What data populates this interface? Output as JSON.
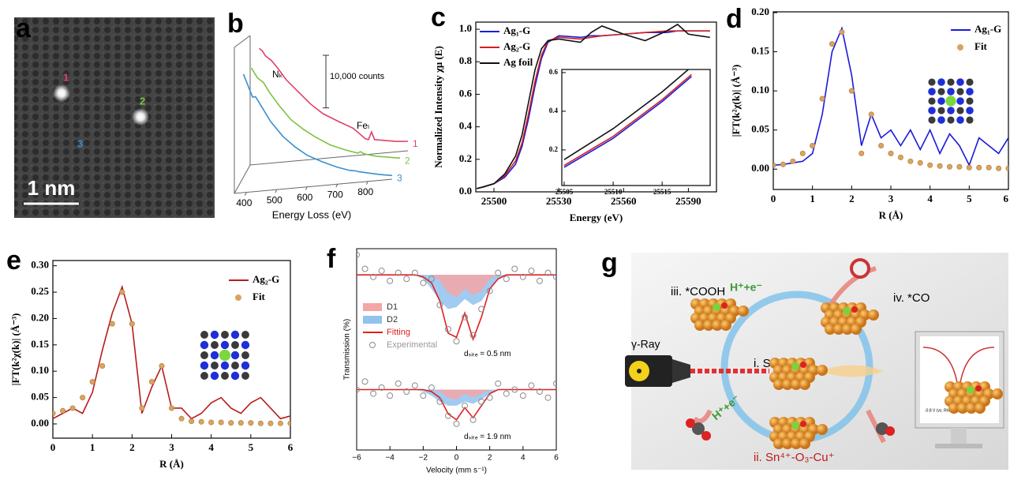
{
  "panel_labels": [
    "a",
    "b",
    "c",
    "d",
    "e",
    "f",
    "g"
  ],
  "image_a": {
    "spots": [
      "1",
      "2",
      "3"
    ],
    "scale_bar": "1 nm"
  },
  "scheme_g": {
    "step_iii": "iii. *COOH",
    "proton_1": "H⁺+e⁻",
    "step_iv": "iv. *CO",
    "source": "γ-Ray",
    "step_i": "i. Sn₁-CuO",
    "step_ii": "ii. Sn⁴⁺-O₃-Cu⁺",
    "proton_2": "H⁺+e⁻",
    "screen_potential": "-0.8 V (vs. RHE)",
    "screen_label": "ii. Sn⁴⁺-O₃-Cu⁺"
  },
  "chart_data": [
    {
      "type": "line3d",
      "xlabel": "Energy Loss (eV)",
      "x": [
        390,
        400,
        410,
        420,
        430,
        450,
        480,
        520,
        560,
        600,
        650,
        700,
        740,
        750,
        760,
        770,
        800,
        840,
        880
      ],
      "series": [
        {
          "name": "1",
          "color": "#e0406a",
          "values": [
            22000,
            21500,
            20500,
            20000,
            19500,
            18000,
            15500,
            13000,
            10500,
            8500,
            6800,
            5200,
            3000,
            2800,
            4200,
            2700,
            2400,
            2000,
            1800
          ]
        },
        {
          "name": "2",
          "color": "#7cc242",
          "values": [
            21000,
            20000,
            19000,
            18500,
            18000,
            16000,
            13500,
            10500,
            8500,
            6800,
            5000,
            3800,
            3000,
            3200,
            2800,
            2600,
            2100,
            1700,
            1300
          ]
        },
        {
          "name": "3",
          "color": "#3a8fd0",
          "values": [
            22500,
            21000,
            19500,
            18000,
            18000,
            16000,
            13000,
            10000,
            7800,
            6000,
            4500,
            3200,
            2400,
            2300,
            2200,
            2000,
            1600,
            1100,
            700
          ]
        }
      ],
      "xlim": [
        360,
        880
      ],
      "xticks": [
        400,
        500,
        600,
        700,
        800
      ],
      "ylim": [
        0,
        30000
      ],
      "scale_bar": {
        "value": 10000,
        "label": "10,000 counts"
      },
      "annotations": [
        "Nₖ",
        "Feₗ"
      ]
    },
    {
      "type": "line",
      "xlabel": "Energy (eV)",
      "ylabel": "Normalized Intensity χμ (E)",
      "x": [
        25492,
        25495,
        25500,
        25505,
        25510,
        25513,
        25516,
        25519,
        25522,
        25525,
        25530,
        25540,
        25545,
        25550,
        25560,
        25570,
        25580,
        25585,
        25590,
        25600
      ],
      "series": [
        {
          "name": "Ag₁-G",
          "color": "#1a1adb",
          "values": [
            0.02,
            0.03,
            0.05,
            0.09,
            0.17,
            0.28,
            0.45,
            0.65,
            0.82,
            0.92,
            0.96,
            0.95,
            0.96,
            0.96,
            0.97,
            0.98,
            0.98,
            0.99,
            0.99,
            0.99
          ]
        },
        {
          "name": "Ag₂-G",
          "color": "#d42020",
          "values": [
            0.02,
            0.03,
            0.05,
            0.1,
            0.19,
            0.3,
            0.48,
            0.68,
            0.84,
            0.93,
            0.95,
            0.94,
            0.95,
            0.96,
            0.97,
            0.98,
            0.99,
            0.99,
            0.99,
            0.99
          ]
        },
        {
          "name": "Ag foil",
          "color": "#111111",
          "values": [
            0.02,
            0.03,
            0.05,
            0.11,
            0.22,
            0.35,
            0.55,
            0.75,
            0.88,
            0.93,
            0.94,
            0.92,
            0.98,
            1.02,
            0.97,
            0.93,
            0.99,
            1.03,
            0.97,
            0.95
          ]
        }
      ],
      "xlim": [
        25491.6,
        25603
      ],
      "xticks": [
        25500,
        25530,
        25560,
        25590
      ],
      "ylim": [
        0,
        1.044
      ],
      "yticks": [
        {
          "value": 0,
          "label": "0.0"
        },
        {
          "value": 0.2,
          "label": "0.2"
        },
        {
          "value": 0.4,
          "label": "0.4"
        },
        {
          "value": 0.6,
          "label": "0.6"
        },
        {
          "value": 0.8,
          "label": "0.8"
        },
        {
          "value": 1,
          "label": "1.0"
        }
      ],
      "legend": "upper left"
    },
    {
      "type": "line",
      "x": [
        25505,
        25510,
        25515,
        25518
      ],
      "series": [
        {
          "color": "#1a1adb",
          "values": [
            0.11,
            0.26,
            0.45,
            0.58
          ]
        },
        {
          "color": "#d42020",
          "values": [
            0.12,
            0.27,
            0.46,
            0.59
          ]
        },
        {
          "color": "#111111",
          "values": [
            0.15,
            0.31,
            0.5,
            0.63
          ]
        }
      ],
      "xlim": [
        25504.76,
        25519.9
      ],
      "xticks": [
        25505,
        25510,
        25515
      ],
      "ylim": [
        0.016,
        0.616
      ],
      "yticks": [
        0.2,
        0.4,
        0.6
      ]
    },
    {
      "type": "line",
      "xlabel": "R (Å)",
      "ylabel": "|FT(k²χ(k)| (Å⁻³)",
      "x": [
        0,
        0.25,
        0.5,
        0.75,
        1,
        1.25,
        1.5,
        1.75,
        2,
        2.25,
        2.5,
        2.75,
        3,
        3.25,
        3.5,
        3.75,
        4,
        4.25,
        4.5,
        4.75,
        5,
        5.25,
        5.5,
        5.75,
        6
      ],
      "series": [
        {
          "name": "Ag₁-G",
          "color": "#1a1adb",
          "style": "line",
          "values": [
            0.005,
            0.006,
            0.008,
            0.01,
            0.02,
            0.07,
            0.15,
            0.18,
            0.12,
            0.03,
            0.07,
            0.04,
            0.05,
            0.03,
            0.05,
            0.025,
            0.05,
            0.02,
            0.045,
            0.03,
            0.005,
            0.04,
            0.03,
            0.02,
            0.04
          ]
        },
        {
          "name": "Fit",
          "color": "#d9a45f",
          "style": "markers",
          "values": [
            0.005,
            0.006,
            0.01,
            0.02,
            0.03,
            0.09,
            0.16,
            0.175,
            0.1,
            0.02,
            0.07,
            0.03,
            0.02,
            0.015,
            0.01,
            0.008,
            0.005,
            0.004,
            0.003,
            0.003,
            0.002,
            0.002,
            0.002,
            0.001,
            0.001
          ]
        }
      ],
      "xlim": [
        0,
        6
      ],
      "xticks": [
        0,
        1,
        2,
        3,
        4,
        5,
        6
      ],
      "ylim": [
        -0.026,
        0.201
      ],
      "yticks": [
        {
          "value": 0,
          "label": "0.00"
        },
        {
          "value": 0.05,
          "label": "0.05"
        },
        {
          "value": 0.1,
          "label": "0.10"
        },
        {
          "value": 0.15,
          "label": "0.15"
        },
        {
          "value": 0.2,
          "label": "0.20"
        }
      ],
      "legend": "upper right"
    },
    {
      "type": "line",
      "xlabel": "R (Å)",
      "ylabel": "|FT(k²χ(k)| (Å⁻³)",
      "x": [
        0,
        0.25,
        0.5,
        0.75,
        1,
        1.25,
        1.5,
        1.75,
        2,
        2.25,
        2.5,
        2.75,
        3,
        3.25,
        3.5,
        3.75,
        4,
        4.25,
        4.5,
        4.75,
        5,
        5.25,
        5.5,
        5.75,
        6
      ],
      "series": [
        {
          "name": "Ag₂-G",
          "color": "#b81c1c",
          "style": "line",
          "values": [
            0.01,
            0.02,
            0.03,
            0.02,
            0.06,
            0.14,
            0.21,
            0.26,
            0.19,
            0.02,
            0.07,
            0.11,
            0.03,
            0.03,
            0.01,
            0.02,
            0.04,
            0.05,
            0.03,
            0.02,
            0.04,
            0.05,
            0.03,
            0.01,
            0.015
          ]
        },
        {
          "name": "Fit",
          "color": "#d9a45f",
          "style": "markers",
          "values": [
            0.02,
            0.025,
            0.03,
            0.05,
            0.08,
            0.11,
            0.19,
            0.25,
            0.19,
            0.03,
            0.08,
            0.11,
            0.03,
            0.01,
            0.005,
            0.004,
            0.003,
            0.003,
            0.002,
            0.002,
            0.002,
            0.001,
            0.001,
            0.001,
            0.001
          ]
        }
      ],
      "xlim": [
        0,
        6
      ],
      "xticks": [
        0,
        1,
        2,
        3,
        4,
        5,
        6
      ],
      "ylim": [
        -0.027,
        0.31
      ],
      "yticks": [
        {
          "value": 0,
          "label": "0.00"
        },
        {
          "value": 0.05,
          "label": "0.05"
        },
        {
          "value": 0.1,
          "label": "0.10"
        },
        {
          "value": 0.15,
          "label": "0.15"
        },
        {
          "value": 0.2,
          "label": "0.20"
        },
        {
          "value": 0.25,
          "label": "0.25"
        },
        {
          "value": 0.3,
          "label": "0.30"
        }
      ],
      "legend": "upper right"
    },
    {
      "type": "mossbauer",
      "xlabel": "Velocity (mm s⁻¹)",
      "ylabel": "Transmission (%)",
      "x": [
        -6,
        -5.5,
        -5,
        -4.5,
        -4,
        -3.5,
        -3,
        -2.5,
        -2,
        -1.5,
        -1,
        -0.5,
        0,
        0.5,
        1,
        1.5,
        2,
        2.5,
        3,
        3.5,
        4,
        4.5,
        5,
        5.5,
        6
      ],
      "baselines": [
        0.87,
        0.3
      ],
      "series": [
        {
          "name": "D1",
          "color": "#f4a6a6",
          "kind": "area",
          "values": [
            [
              0.87,
              0.87,
              0.87,
              0.87,
              0.87,
              0.87,
              0.87,
              0.87,
              0.87,
              0.87,
              0.84,
              0.78,
              0.76,
              0.8,
              0.77,
              0.79,
              0.85,
              0.87,
              0.87,
              0.87,
              0.87,
              0.87,
              0.87,
              0.87,
              0.87
            ],
            [
              0.3,
              0.3,
              0.3,
              0.3,
              0.3,
              0.3,
              0.3,
              0.3,
              0.3,
              0.3,
              0.29,
              0.26,
              0.25,
              0.28,
              0.26,
              0.28,
              0.3,
              0.3,
              0.3,
              0.3,
              0.3,
              0.3,
              0.3,
              0.3,
              0.3
            ]
          ]
        },
        {
          "name": "D2",
          "color": "#92c2ee",
          "kind": "area",
          "values": [
            [
              0.87,
              0.87,
              0.87,
              0.87,
              0.87,
              0.87,
              0.87,
              0.87,
              0.85,
              0.8,
              0.74,
              0.7,
              0.71,
              0.75,
              0.72,
              0.74,
              0.8,
              0.85,
              0.87,
              0.87,
              0.87,
              0.87,
              0.87,
              0.87,
              0.87
            ],
            [
              0.3,
              0.3,
              0.3,
              0.3,
              0.3,
              0.3,
              0.3,
              0.3,
              0.29,
              0.27,
              0.24,
              0.22,
              0.22,
              0.24,
              0.23,
              0.25,
              0.28,
              0.3,
              0.3,
              0.3,
              0.3,
              0.3,
              0.3,
              0.3,
              0.3
            ]
          ]
        },
        {
          "name": "Fitting",
          "color": "#e02020",
          "kind": "line",
          "values": [
            [
              0.87,
              0.87,
              0.87,
              0.87,
              0.87,
              0.87,
              0.87,
              0.87,
              0.86,
              0.83,
              0.74,
              0.58,
              0.56,
              0.68,
              0.55,
              0.66,
              0.8,
              0.85,
              0.87,
              0.87,
              0.87,
              0.87,
              0.87,
              0.87,
              0.87
            ],
            [
              0.3,
              0.3,
              0.3,
              0.3,
              0.3,
              0.3,
              0.3,
              0.3,
              0.3,
              0.29,
              0.26,
              0.18,
              0.15,
              0.21,
              0.16,
              0.22,
              0.28,
              0.3,
              0.3,
              0.3,
              0.3,
              0.3,
              0.3,
              0.3,
              0.3
            ]
          ]
        },
        {
          "name": "Experimental",
          "color": "#8a8a8a",
          "kind": "markers",
          "values": [
            [
              0.97,
              0.9,
              0.86,
              0.89,
              0.84,
              0.88,
              0.85,
              0.88,
              0.83,
              0.85,
              0.72,
              0.6,
              0.54,
              0.66,
              0.57,
              0.7,
              0.79,
              0.88,
              0.85,
              0.9,
              0.86,
              0.89,
              0.84,
              0.88,
              0.86
            ],
            [
              0.3,
              0.34,
              0.28,
              0.31,
              0.27,
              0.33,
              0.29,
              0.32,
              0.27,
              0.31,
              0.24,
              0.17,
              0.13,
              0.22,
              0.15,
              0.24,
              0.26,
              0.33,
              0.28,
              0.3,
              0.27,
              0.32,
              0.29,
              0.26,
              0.33
            ]
          ]
        }
      ],
      "annotations": [
        "dₛᵢₜₑ = 0.5 nm",
        "dₛᵢₜₑ = 1.9 nm"
      ],
      "xlim": [
        -6,
        6
      ],
      "xticks": [
        {
          "value": -6,
          "label": "−6"
        },
        {
          "value": -4,
          "label": "−4"
        },
        {
          "value": -2,
          "label": "−2"
        },
        0,
        2,
        4,
        6
      ],
      "ylim": [
        0,
        1
      ],
      "legend": "center left"
    }
  ]
}
